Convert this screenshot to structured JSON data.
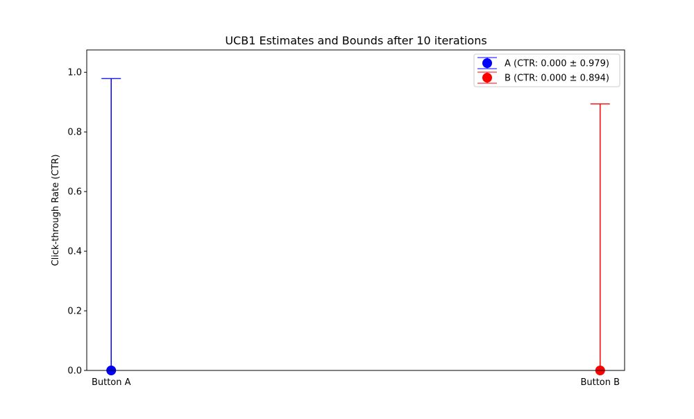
{
  "chart_data": {
    "type": "errorbar",
    "title": "UCB1 Estimates and Bounds after 10 iterations",
    "xlabel": "",
    "ylabel": "Click-through Rate (CTR)",
    "categories": [
      "Button A",
      "Button B"
    ],
    "ylim": [
      0,
      1.075
    ],
    "yticks": [
      0.0,
      0.2,
      0.4,
      0.6,
      0.8,
      1.0
    ],
    "ytick_labels": [
      "0.0",
      "0.2",
      "0.4",
      "0.6",
      "0.8",
      "1.0"
    ],
    "grid": false,
    "legend_position": "top-right",
    "series": [
      {
        "name": "A (CTR: 0.000 ± 0.979)",
        "category": "Button A",
        "value": 0.0,
        "error": 0.979,
        "color": "#0000ff"
      },
      {
        "name": "B (CTR: 0.000 ± 0.894)",
        "category": "Button B",
        "value": 0.0,
        "error": 0.894,
        "color": "#ff0000"
      }
    ]
  }
}
